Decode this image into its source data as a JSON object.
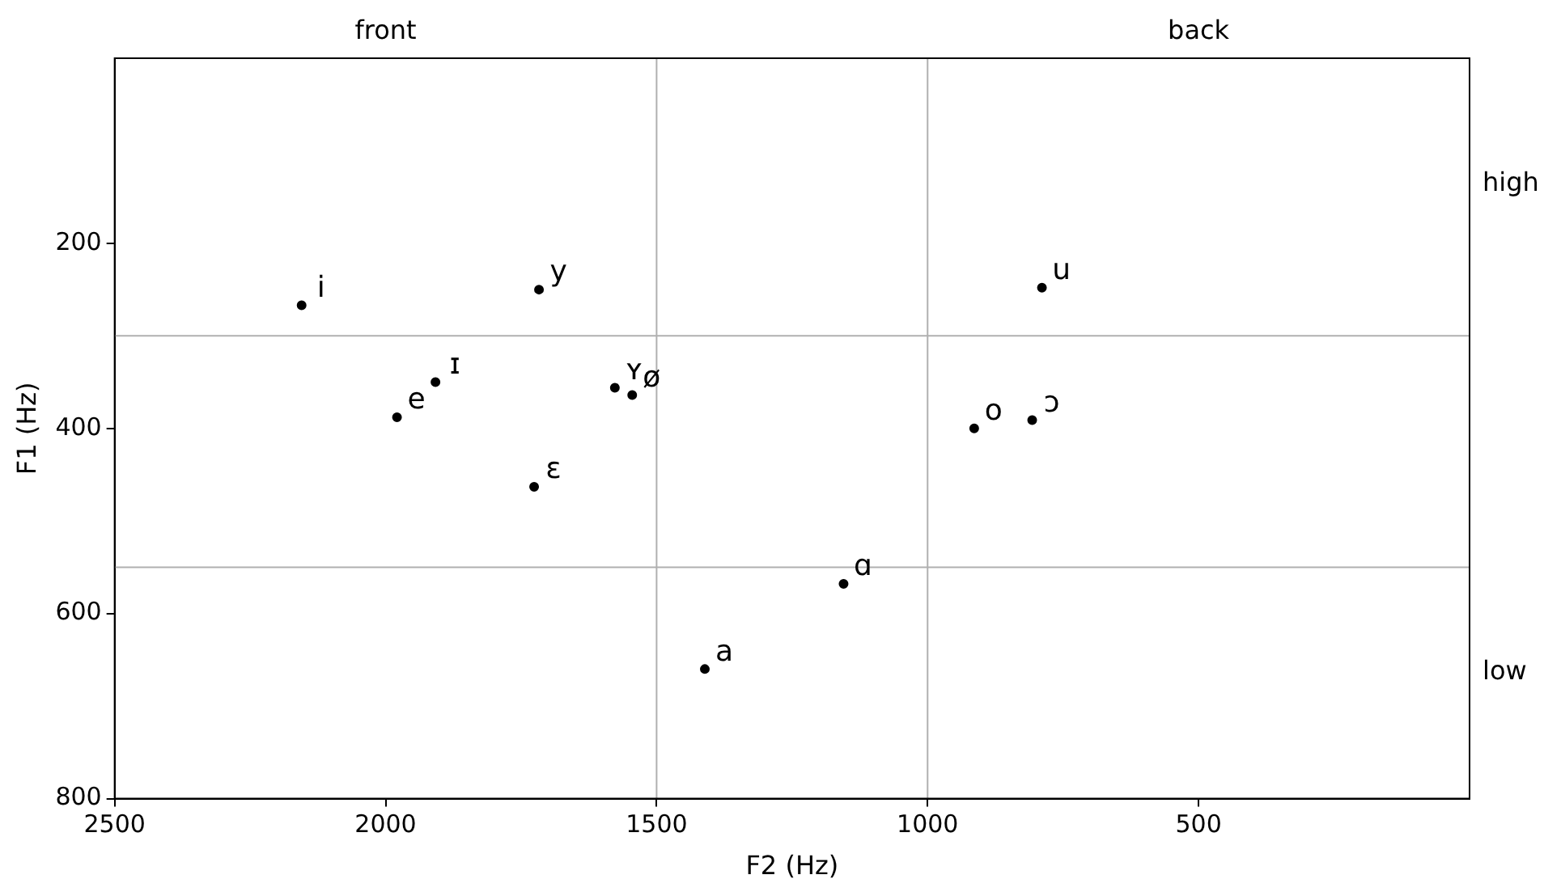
{
  "chart_data": {
    "type": "scatter",
    "xlabel": "F2 (Hz)",
    "ylabel": "F1 (Hz)",
    "series": [
      {
        "color": "#000000",
        "x": [
          2155,
          1717,
          1908,
          1979,
          1577,
          1545,
          1726,
          1411,
          1155,
          914,
          807,
          789
        ],
        "values": [
          267,
          250,
          350,
          388,
          356,
          364,
          463,
          660,
          568,
          400,
          391,
          248
        ],
        "value_labels": [
          "i",
          "y",
          "ɪ",
          "e",
          "ʏ",
          "ø",
          "ɛ",
          "a",
          "ɑ",
          "o",
          "ɔ",
          "u"
        ]
      }
    ],
    "marker": "circle",
    "xlim": [
      2500,
      0
    ],
    "xticks": [
      2500,
      2000,
      1500,
      1000,
      500
    ],
    "ylim": [
      800,
      0
    ],
    "yticks": [
      200,
      400,
      600,
      800
    ],
    "annotations": [
      "front",
      "back",
      "high",
      "low"
    ],
    "ref_lines": [
      {
        "axis": "x",
        "value": 1500,
        "color": "#b0b0b0"
      },
      {
        "axis": "x",
        "value": 1000,
        "color": "#b0b0b0"
      },
      {
        "axis": "y",
        "value": 300,
        "color": "#b0b0b0"
      },
      {
        "axis": "y",
        "value": 550,
        "color": "#b0b0b0"
      }
    ],
    "grid": false,
    "legend": false
  }
}
